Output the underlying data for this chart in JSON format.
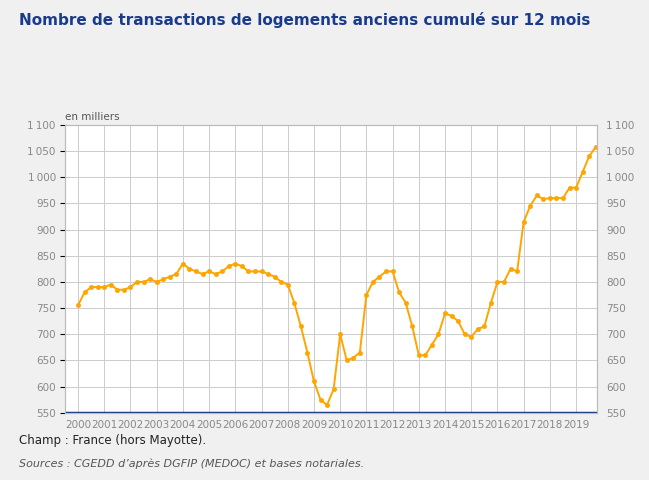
{
  "title": "Nombre de transactions de logements anciens cumulé sur 12 mois",
  "ylabel_left": "en milliers",
  "footer_line1": "Champ : France (hors Mayotte).",
  "footer_line2": "Sources : CGEDD d’après DGFIP (MEDOC) et bases notariales.",
  "line_color": "#FFA500",
  "marker_color": "#FFA500",
  "background_color": "#F0F0F0",
  "plot_bg_color": "#FFFFFF",
  "grid_color": "#CCCCCC",
  "bottom_line_color": "#1A3A8C",
  "title_color": "#1A3A8C",
  "tick_color": "#888888",
  "footer1_color": "#222222",
  "footer2_color": "#555555",
  "ylim": [
    550,
    1100
  ],
  "yticks": [
    550,
    600,
    650,
    700,
    750,
    800,
    850,
    900,
    950,
    1000,
    1050,
    1100
  ],
  "x_labels": [
    "2000",
    "2001",
    "2002",
    "2003",
    "2004",
    "2005",
    "2006",
    "2007",
    "2008",
    "2009",
    "2010",
    "2011",
    "2012",
    "2013",
    "2014",
    "2015",
    "2016",
    "2017",
    "2018",
    "2019"
  ],
  "data_x": [
    0.0,
    0.25,
    0.5,
    0.75,
    1.0,
    1.25,
    1.5,
    1.75,
    2.0,
    2.25,
    2.5,
    2.75,
    3.0,
    3.25,
    3.5,
    3.75,
    4.0,
    4.25,
    4.5,
    4.75,
    5.0,
    5.25,
    5.5,
    5.75,
    6.0,
    6.25,
    6.5,
    6.75,
    7.0,
    7.25,
    7.5,
    7.75,
    8.0,
    8.25,
    8.5,
    8.75,
    9.0,
    9.25,
    9.5,
    9.75,
    10.0,
    10.25,
    10.5,
    10.75,
    11.0,
    11.25,
    11.5,
    11.75,
    12.0,
    12.25,
    12.5,
    12.75,
    13.0,
    13.25,
    13.5,
    13.75,
    14.0,
    14.25,
    14.5,
    14.75,
    15.0,
    15.25,
    15.5,
    15.75,
    16.0,
    16.25,
    16.5,
    16.75,
    17.0,
    17.25,
    17.5,
    17.75,
    18.0,
    18.25,
    18.5,
    18.75,
    19.0,
    19.25,
    19.5,
    19.75
  ],
  "data_y": [
    755,
    780,
    790,
    790,
    790,
    795,
    785,
    785,
    790,
    800,
    800,
    805,
    800,
    805,
    810,
    815,
    835,
    825,
    820,
    815,
    820,
    815,
    820,
    830,
    835,
    830,
    820,
    820,
    820,
    815,
    810,
    800,
    795,
    760,
    715,
    665,
    610,
    575,
    565,
    595,
    700,
    650,
    655,
    665,
    775,
    800,
    810,
    820,
    820,
    780,
    760,
    715,
    660,
    660,
    680,
    700,
    740,
    735,
    725,
    700,
    695,
    710,
    715,
    760,
    800,
    800,
    825,
    820,
    915,
    945,
    965,
    958,
    960,
    960,
    960,
    980,
    980,
    1010,
    1040,
    1058
  ]
}
